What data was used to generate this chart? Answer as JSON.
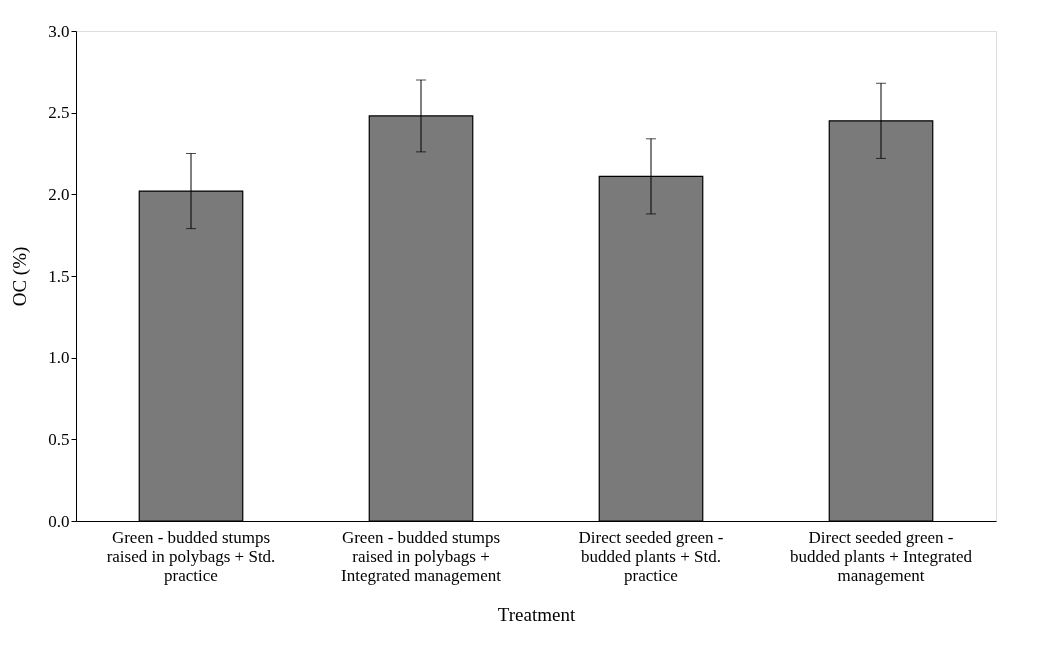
{
  "chart_data": {
    "type": "bar",
    "xlabel": "Treatment",
    "ylabel": "OC (%)",
    "categories": [
      "Green - budded  stumps raised in polybags + Std. practice",
      "Green - budded  stumps raised in polybags + Integrated management",
      "Direct seeded green - budded plants + Std. practice",
      "Direct seeded green - budded plants + Integrated management"
    ],
    "values": [
      2.02,
      2.48,
      2.11,
      2.45
    ],
    "errors": [
      0.23,
      0.22,
      0.23,
      0.23
    ],
    "color": "#7a7a7a",
    "ylim": [
      0,
      3
    ],
    "yticks": [
      {
        "value": 0,
        "label": "0.0"
      },
      {
        "value": 0.5,
        "label": "0.5"
      },
      {
        "value": 1,
        "label": "1.0"
      },
      {
        "value": 1.5,
        "label": "1.5"
      },
      {
        "value": 2,
        "label": "2.0"
      },
      {
        "value": 2.5,
        "label": "2.5"
      },
      {
        "value": 3,
        "label": "3.0"
      }
    ],
    "grid": false
  }
}
